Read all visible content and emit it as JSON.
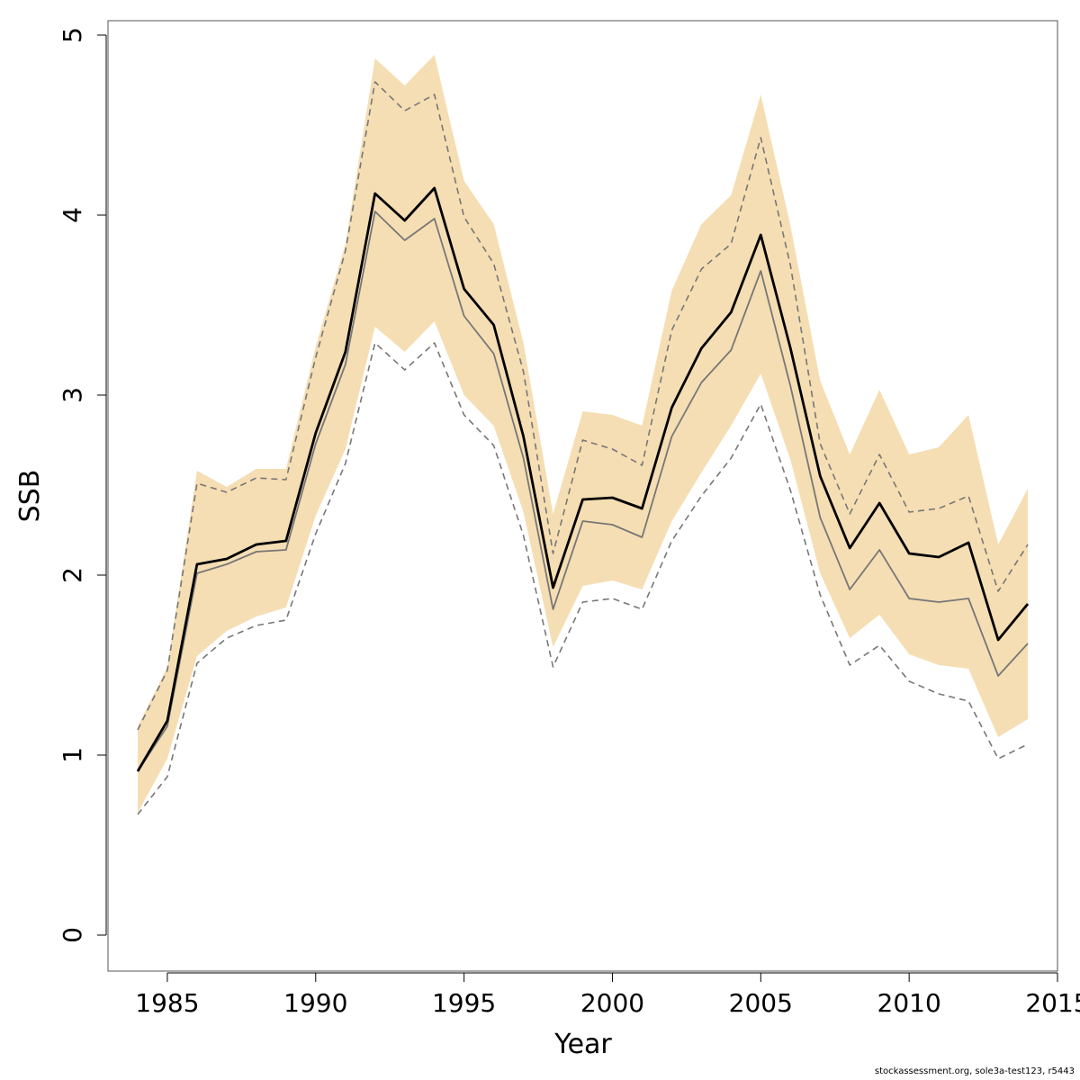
{
  "chart_data": {
    "type": "line",
    "xlabel": "Year",
    "ylabel": "SSB",
    "xlim": [
      1983,
      2015
    ],
    "ylim": [
      -0.2,
      5.08
    ],
    "x_ticks": [
      1985,
      1990,
      1995,
      2000,
      2005,
      2010,
      2015
    ],
    "y_ticks": [
      0,
      1,
      2,
      3,
      4,
      5
    ],
    "grid": false,
    "band_color": "#f5deb3",
    "years": [
      1984,
      1985,
      1986,
      1987,
      1988,
      1989,
      1990,
      1991,
      1992,
      1993,
      1994,
      1995,
      1996,
      1997,
      1998,
      1999,
      2000,
      2001,
      2002,
      2003,
      2004,
      2005,
      2006,
      2007,
      2008,
      2009,
      2010,
      2011,
      2012,
      2013,
      2014
    ],
    "series": [
      {
        "role": "band",
        "color": "#f5deb3",
        "upper": [
          1.16,
          1.49,
          2.58,
          2.49,
          2.59,
          2.59,
          3.27,
          3.84,
          4.87,
          4.72,
          4.89,
          4.19,
          3.95,
          3.29,
          2.34,
          2.91,
          2.89,
          2.83,
          3.58,
          3.95,
          4.11,
          4.67,
          3.94,
          3.08,
          2.67,
          3.03,
          2.67,
          2.71,
          2.89,
          2.17,
          2.48
        ],
        "lower": [
          0.68,
          0.98,
          1.55,
          1.69,
          1.77,
          1.82,
          2.33,
          2.7,
          3.38,
          3.24,
          3.41,
          3.0,
          2.83,
          2.35,
          1.6,
          1.94,
          1.97,
          1.92,
          2.3,
          2.57,
          2.83,
          3.12,
          2.64,
          2.01,
          1.65,
          1.78,
          1.56,
          1.5,
          1.48,
          1.1,
          1.2
        ]
      },
      {
        "role": "dashed-upper",
        "color": "#777777",
        "values": [
          1.14,
          1.47,
          2.51,
          2.46,
          2.54,
          2.53,
          3.21,
          3.8,
          4.74,
          4.58,
          4.67,
          3.99,
          3.73,
          3.13,
          2.12,
          2.75,
          2.7,
          2.61,
          3.36,
          3.7,
          3.84,
          4.43,
          3.72,
          2.73,
          2.34,
          2.67,
          2.35,
          2.37,
          2.44,
          1.91,
          2.17
        ]
      },
      {
        "role": "dashed-lower",
        "color": "#777777",
        "values": [
          0.67,
          0.88,
          1.51,
          1.65,
          1.72,
          1.75,
          2.23,
          2.62,
          3.29,
          3.14,
          3.29,
          2.89,
          2.72,
          2.22,
          1.49,
          1.85,
          1.87,
          1.81,
          2.19,
          2.44,
          2.65,
          2.95,
          2.47,
          1.89,
          1.5,
          1.61,
          1.41,
          1.34,
          1.3,
          0.98,
          1.06
        ]
      },
      {
        "role": "grey-line",
        "color": "#777777",
        "values": [
          0.91,
          1.16,
          2.01,
          2.06,
          2.13,
          2.14,
          2.73,
          3.17,
          4.02,
          3.86,
          3.98,
          3.44,
          3.23,
          2.65,
          1.81,
          2.3,
          2.28,
          2.21,
          2.77,
          3.07,
          3.25,
          3.69,
          3.05,
          2.32,
          1.92,
          2.14,
          1.87,
          1.85,
          1.87,
          1.44,
          1.62
        ]
      },
      {
        "role": "main-line",
        "color": "#000000",
        "values": [
          0.91,
          1.19,
          2.06,
          2.09,
          2.17,
          2.19,
          2.79,
          3.24,
          4.12,
          3.97,
          4.15,
          3.59,
          3.39,
          2.77,
          1.93,
          2.42,
          2.43,
          2.37,
          2.93,
          3.26,
          3.46,
          3.89,
          3.26,
          2.55,
          2.15,
          2.4,
          2.12,
          2.1,
          2.18,
          1.64,
          1.84
        ]
      }
    ]
  },
  "footer": {
    "credit": "stockassessment.org, sole3a-test123, r5443"
  }
}
